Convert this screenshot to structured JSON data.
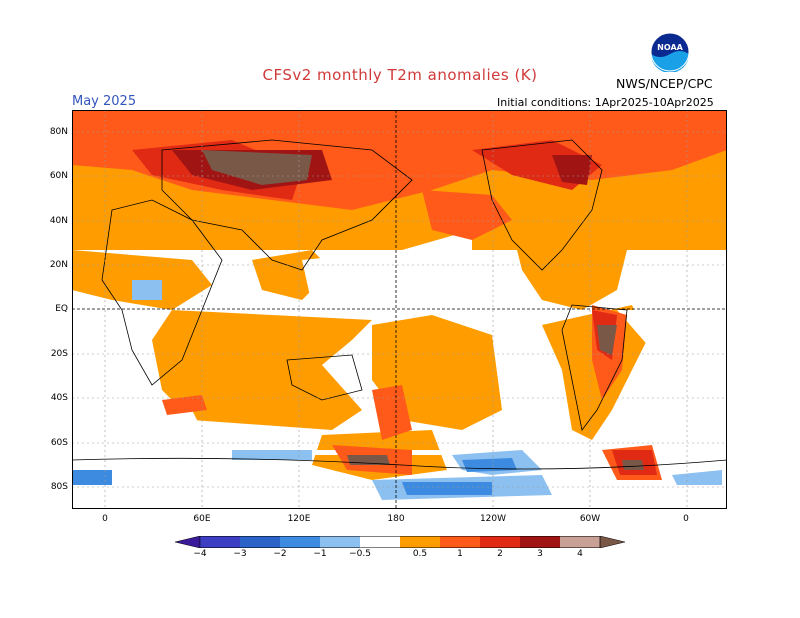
{
  "title": "CFSv2 monthly T2m anomalies (K)",
  "month": "May 2025",
  "initial_conditions": "Initial conditions: 1Apr2025-10Apr2025",
  "agency": "NWS/NCEP/CPC",
  "logo_text": "NOAA",
  "lat_labels": [
    "80N",
    "60N",
    "40N",
    "20N",
    "EQ",
    "20S",
    "40S",
    "60S",
    "80S"
  ],
  "lon_labels": [
    "0",
    "60E",
    "120E",
    "180",
    "120W",
    "60W",
    "0"
  ],
  "colorbar": {
    "ticks": [
      "−4",
      "−3",
      "−2",
      "−1",
      "−0.5",
      "0.5",
      "1",
      "2",
      "3",
      "4"
    ],
    "colors": {
      "lt_m4": "#3a1a9a",
      "m4_m3": "#3d3fc2",
      "m3_m2": "#2b63c9",
      "m2_m1": "#3d8be0",
      "m1_m05": "#8cc0f0",
      "neutral": "#ffffff",
      "p05_p1": "#ff9d00",
      "p1_p2": "#ff5a1a",
      "p2_p3": "#e02a14",
      "p3_p4": "#a01414",
      "p4_p5": "#c8a096",
      "gt_p5": "#7a5848"
    }
  }
}
